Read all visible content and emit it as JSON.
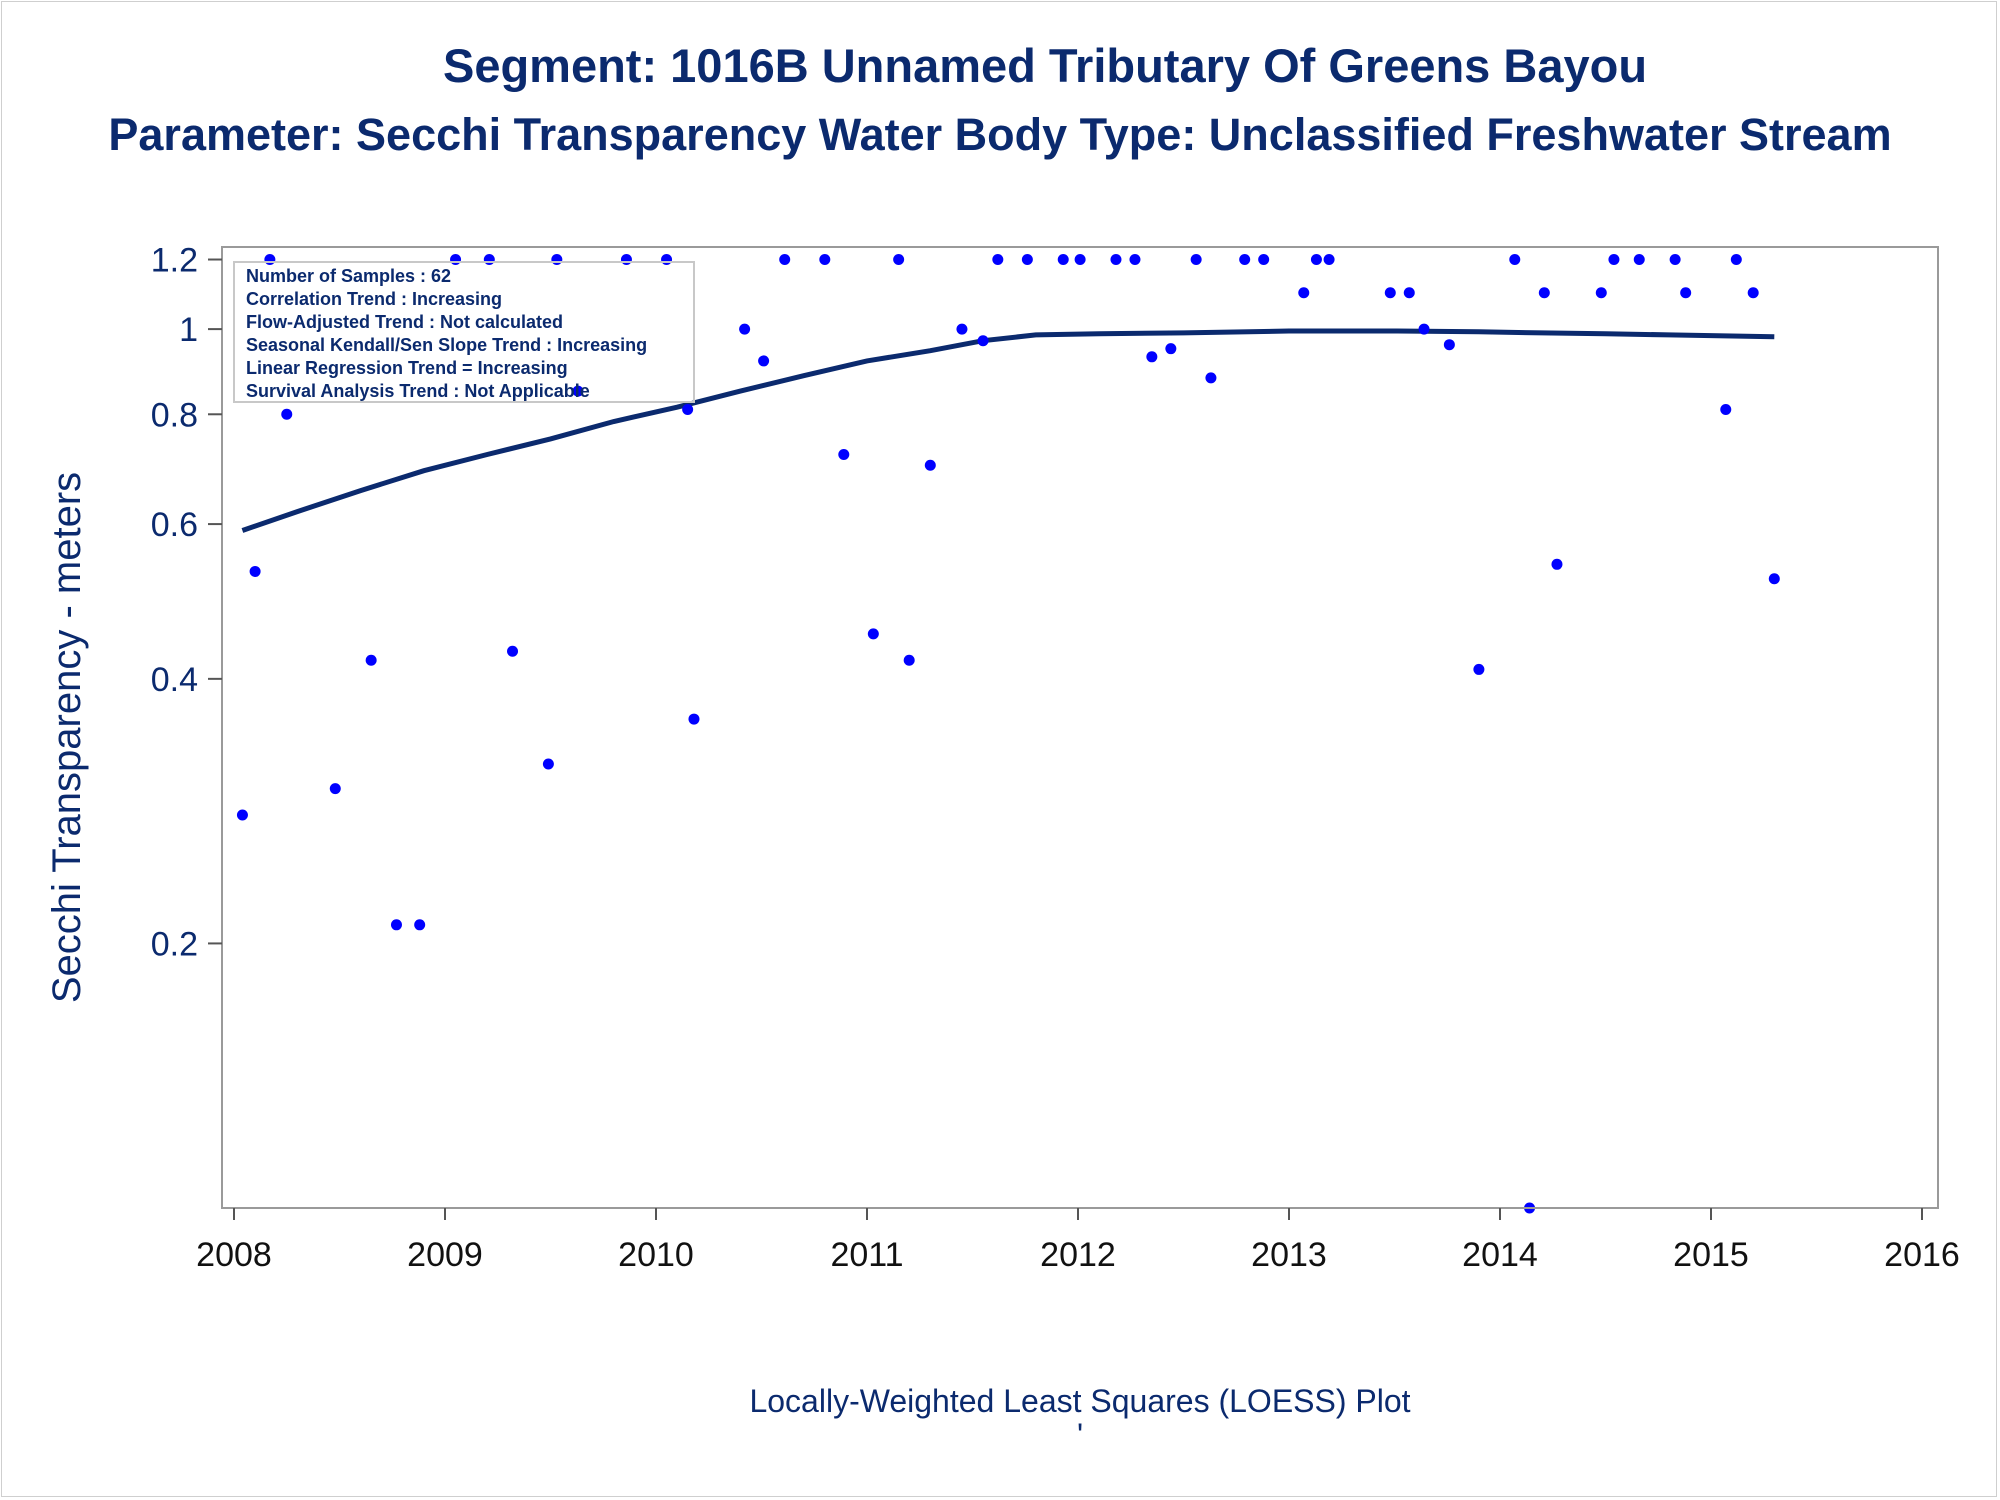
{
  "chart_data": {
    "type": "scatter",
    "title": "Segment: 1016B  Unnamed Tributary Of Greens Bayou",
    "subtitle": "Parameter: Secchi Transparency   Water Body Type: Unclassified Freshwater Stream",
    "xlabel": "",
    "ylabel": "Secchi Transparency - meters",
    "footnote": "Locally-Weighted Least Squares (LOESS) Plot",
    "footnote_mark": "'",
    "x_scale": "time",
    "y_scale": "log",
    "xlim": [
      2008,
      2016
    ],
    "ylim": [
      0.1,
      1.24
    ],
    "x_ticks": [
      "2008",
      "2009",
      "2010",
      "2011",
      "2012",
      "2013",
      "2014",
      "2015",
      "2016"
    ],
    "y_ticks": [
      {
        "value": 1.2,
        "label": "1.2"
      },
      {
        "value": 1.0,
        "label": "1"
      },
      {
        "value": 0.8,
        "label": "0.8"
      },
      {
        "value": 0.6,
        "label": "0.6"
      },
      {
        "value": 0.4,
        "label": "0.4"
      },
      {
        "value": 0.2,
        "label": "0.2"
      }
    ],
    "grid": false,
    "legend_position": "none",
    "inset_text": [
      "Number of Samples : 62",
      "Correlation Trend : Increasing",
      "Flow-Adjusted Trend : Not calculated",
      "Seasonal Kendall/Sen Slope Trend : Increasing",
      "Linear Regression Trend = Increasing",
      "Survival Analysis Trend : Not Applicable"
    ],
    "series": [
      {
        "type": "scatter",
        "color": "#0000ff",
        "points": [
          [
            2008.04,
            0.28
          ],
          [
            2008.1,
            0.53
          ],
          [
            2008.17,
            1.2
          ],
          [
            2008.25,
            0.8
          ],
          [
            2008.48,
            0.3
          ],
          [
            2008.65,
            0.42
          ],
          [
            2008.77,
            0.21
          ],
          [
            2008.88,
            0.21
          ],
          [
            2009.05,
            1.2
          ],
          [
            2009.21,
            1.2
          ],
          [
            2009.32,
            0.43
          ],
          [
            2009.49,
            0.32
          ],
          [
            2009.53,
            1.2
          ],
          [
            2009.63,
            0.85
          ],
          [
            2009.86,
            1.2
          ],
          [
            2010.05,
            1.2
          ],
          [
            2010.15,
            0.81
          ],
          [
            2010.18,
            0.36
          ],
          [
            2010.42,
            1.0
          ],
          [
            2010.51,
            0.92
          ],
          [
            2010.61,
            1.2
          ],
          [
            2010.8,
            1.2
          ],
          [
            2010.89,
            0.72
          ],
          [
            2011.03,
            0.45
          ],
          [
            2011.15,
            1.2
          ],
          [
            2011.2,
            0.42
          ],
          [
            2011.3,
            0.7
          ],
          [
            2011.45,
            1.0
          ],
          [
            2011.55,
            0.97
          ],
          [
            2011.62,
            1.2
          ],
          [
            2011.76,
            1.2
          ],
          [
            2011.93,
            1.2
          ],
          [
            2012.01,
            1.2
          ],
          [
            2012.18,
            1.2
          ],
          [
            2012.27,
            1.2
          ],
          [
            2012.35,
            0.93
          ],
          [
            2012.44,
            0.95
          ],
          [
            2012.56,
            1.2
          ],
          [
            2012.63,
            0.88
          ],
          [
            2012.79,
            1.2
          ],
          [
            2012.88,
            1.2
          ],
          [
            2013.07,
            1.1
          ],
          [
            2013.13,
            1.2
          ],
          [
            2013.19,
            1.2
          ],
          [
            2013.48,
            1.1
          ],
          [
            2013.57,
            1.1
          ],
          [
            2013.64,
            1.0
          ],
          [
            2013.76,
            0.96
          ],
          [
            2013.9,
            0.41
          ],
          [
            2014.07,
            1.2
          ],
          [
            2014.14,
            0.1
          ],
          [
            2014.21,
            1.1
          ],
          [
            2014.27,
            0.54
          ],
          [
            2014.48,
            1.1
          ],
          [
            2014.54,
            1.2
          ],
          [
            2014.66,
            1.2
          ],
          [
            2014.83,
            1.2
          ],
          [
            2014.88,
            1.1
          ],
          [
            2015.07,
            0.81
          ],
          [
            2015.12,
            1.2
          ],
          [
            2015.2,
            1.1
          ],
          [
            2015.3,
            0.52
          ]
        ]
      },
      {
        "type": "line",
        "color": "#0b2a6e",
        "points": [
          [
            2008.04,
            0.59
          ],
          [
            2008.3,
            0.62
          ],
          [
            2008.6,
            0.655
          ],
          [
            2008.9,
            0.69
          ],
          [
            2009.2,
            0.72
          ],
          [
            2009.5,
            0.75
          ],
          [
            2009.8,
            0.785
          ],
          [
            2010.1,
            0.815
          ],
          [
            2010.4,
            0.85
          ],
          [
            2010.7,
            0.885
          ],
          [
            2011.0,
            0.92
          ],
          [
            2011.3,
            0.945
          ],
          [
            2011.55,
            0.97
          ],
          [
            2011.8,
            0.985
          ],
          [
            2012.1,
            0.988
          ],
          [
            2012.5,
            0.99
          ],
          [
            2013.0,
            0.995
          ],
          [
            2013.5,
            0.995
          ],
          [
            2013.9,
            0.993
          ],
          [
            2014.2,
            0.99
          ],
          [
            2014.5,
            0.988
          ],
          [
            2014.8,
            0.985
          ],
          [
            2015.1,
            0.982
          ],
          [
            2015.3,
            0.98
          ]
        ]
      }
    ]
  }
}
